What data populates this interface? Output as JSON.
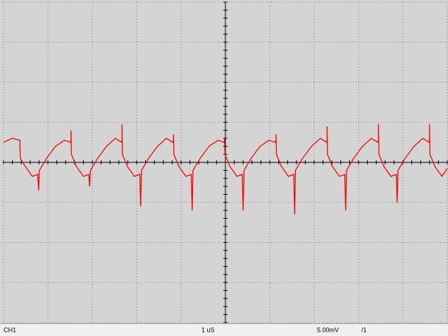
{
  "screen": {
    "trace": {
      "color": "#ff0000",
      "x": [
        0,
        0.2,
        0.37,
        0.37,
        0.38,
        0.49,
        0.65,
        0.77,
        0.79,
        0.81,
        0.97,
        1.17,
        1.37,
        1.51,
        1.52,
        1.52,
        1.53,
        1.64,
        1.8,
        1.92,
        1.94,
        1.96,
        2.12,
        2.32,
        2.52,
        2.66,
        2.67,
        2.67,
        2.68,
        2.79,
        2.95,
        3.07,
        3.09,
        3.11,
        3.27,
        3.47,
        3.67,
        3.81,
        3.83,
        3.83,
        3.84,
        3.95,
        4.11,
        4.23,
        4.25,
        4.27,
        4.43,
        4.63,
        4.83,
        4.97,
        4.98,
        4.98,
        4.99,
        5.1,
        5.26,
        5.38,
        5.4,
        5.42,
        5.58,
        5.78,
        5.98,
        6.12,
        6.14,
        6.14,
        6.15,
        6.26,
        6.42,
        6.54,
        6.56,
        6.58,
        6.74,
        6.94,
        7.14,
        7.28,
        7.29,
        7.29,
        7.3,
        7.41,
        7.57,
        7.69,
        7.71,
        7.73,
        7.89,
        8.09,
        8.29,
        8.43,
        8.45,
        8.45,
        8.46,
        8.57,
        8.73,
        8.85,
        8.87,
        8.89,
        9.05,
        9.25,
        9.45,
        9.59,
        9.6,
        9.6,
        9.61,
        9.72,
        9.88,
        10.0
      ],
      "values": [
        0.5,
        0.6,
        0.55,
        0.4,
        0.1,
        -0.1,
        -0.35,
        -0.3,
        -0.7,
        -0.2,
        0.1,
        0.4,
        0.55,
        0.5,
        0.55,
        0.8,
        0.2,
        -0.1,
        -0.35,
        -0.3,
        -0.6,
        -0.2,
        0.1,
        0.4,
        0.6,
        0.5,
        0.55,
        0.95,
        0.2,
        -0.1,
        -0.35,
        -0.3,
        -1.1,
        -0.2,
        0.1,
        0.4,
        0.6,
        0.5,
        0.55,
        0.7,
        0.2,
        -0.1,
        -0.35,
        -0.3,
        -1.2,
        -0.2,
        0.1,
        0.4,
        0.55,
        0.5,
        0.55,
        0.6,
        0.2,
        -0.1,
        -0.35,
        -0.3,
        -1.2,
        -0.2,
        0.1,
        0.4,
        0.55,
        0.5,
        0.55,
        0.7,
        0.2,
        -0.1,
        -0.35,
        -0.3,
        -1.3,
        -0.2,
        0.1,
        0.4,
        0.6,
        0.5,
        0.55,
        0.9,
        0.2,
        -0.1,
        -0.35,
        -0.3,
        -1.2,
        -0.2,
        0.1,
        0.4,
        0.6,
        0.5,
        0.55,
        0.95,
        0.2,
        -0.1,
        -0.35,
        -0.3,
        -1.0,
        -0.2,
        0.1,
        0.4,
        0.6,
        0.5,
        0.55,
        0.95,
        0.2,
        -0.1,
        -0.35,
        -0.15
      ]
    },
    "status_bar": {
      "channel": "CH1",
      "timebase": "1 uS",
      "volts_per_div": "5.00mV",
      "probe": "/1"
    }
  }
}
